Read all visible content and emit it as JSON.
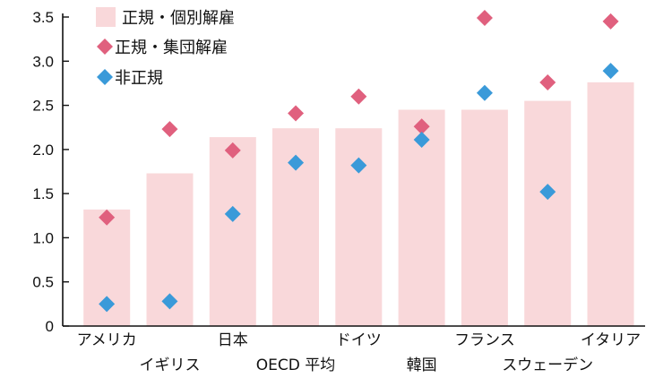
{
  "chart_data": {
    "type": "bar",
    "categories": [
      "アメリカ",
      "イギリス",
      "日本",
      "OECD 平均",
      "ドイツ",
      "韓国",
      "フランス",
      "スウェーデン",
      "イタリア"
    ],
    "series": [
      {
        "name": "正規・個別解雇",
        "kind": "bar",
        "color": "#f9d8da",
        "values": [
          1.32,
          1.73,
          2.14,
          2.24,
          2.24,
          2.45,
          2.45,
          2.55,
          2.76
        ]
      },
      {
        "name": "正規・集団解雇",
        "kind": "marker",
        "marker": "diamond",
        "color": "#e0607e",
        "values": [
          1.23,
          2.23,
          1.99,
          2.41,
          2.6,
          2.26,
          3.49,
          2.76,
          3.45
        ]
      },
      {
        "name": "非正規",
        "kind": "marker",
        "marker": "diamond",
        "color": "#3a9ad9",
        "values": [
          0.25,
          0.28,
          1.27,
          1.85,
          1.82,
          2.11,
          2.64,
          1.52,
          2.89
        ]
      }
    ],
    "yticks": [
      "0",
      "0.5",
      "1.0",
      "1.5",
      "2.0",
      "2.5",
      "3.0",
      "3.5"
    ],
    "ylim": [
      0,
      3.5
    ],
    "grid": false,
    "legend_placement": "top-left",
    "title": "",
    "xlabel": "",
    "ylabel": ""
  }
}
